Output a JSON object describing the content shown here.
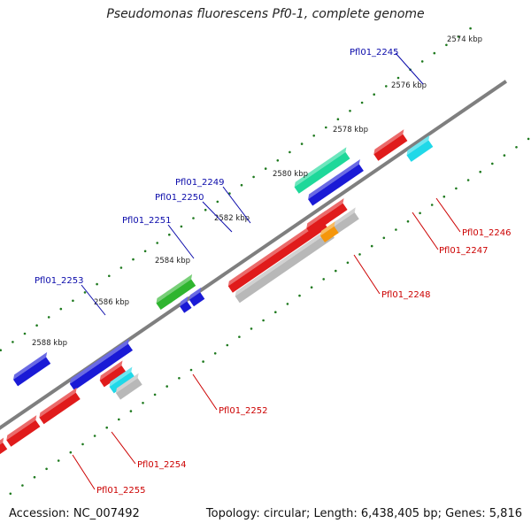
{
  "title": "Pseudomonas fluorescens Pf0-1, complete genome",
  "accession": "Accession: NC_007492",
  "topology": "Topology: circular; Length: 6,438,405 bp; Genes: 5,816",
  "colors": {
    "backbone": "#7f7f7f",
    "tick": "#1f7a1f",
    "forward_label": "#0a0aaa",
    "reverse_label": "#cc0000",
    "red": "#e01b1b",
    "blue": "#1a1ad6",
    "green": "#2fb52f",
    "teal": "#1ed89a",
    "cyan": "#20d8e8",
    "gray": "#b8b8b8",
    "orange": "#f5960c"
  },
  "kbp_ticks": [
    {
      "label": "2574 kbp"
    },
    {
      "label": "2576 kbp"
    },
    {
      "label": "2578 kbp"
    },
    {
      "label": "2580 kbp"
    },
    {
      "label": "2582 kbp"
    },
    {
      "label": "2584 kbp"
    },
    {
      "label": "2586 kbp"
    },
    {
      "label": "2588 kbp"
    }
  ],
  "forward_genes": [
    {
      "name": "Pfl01_2245"
    },
    {
      "name": "Pfl01_2249"
    },
    {
      "name": "Pfl01_2250"
    },
    {
      "name": "Pfl01_2251"
    },
    {
      "name": "Pfl01_2253"
    }
  ],
  "reverse_genes": [
    {
      "name": "Pfl01_2246"
    },
    {
      "name": "Pfl01_2247"
    },
    {
      "name": "Pfl01_2248"
    },
    {
      "name": "Pfl01_2252"
    },
    {
      "name": "Pfl01_2254"
    },
    {
      "name": "Pfl01_2255"
    }
  ]
}
